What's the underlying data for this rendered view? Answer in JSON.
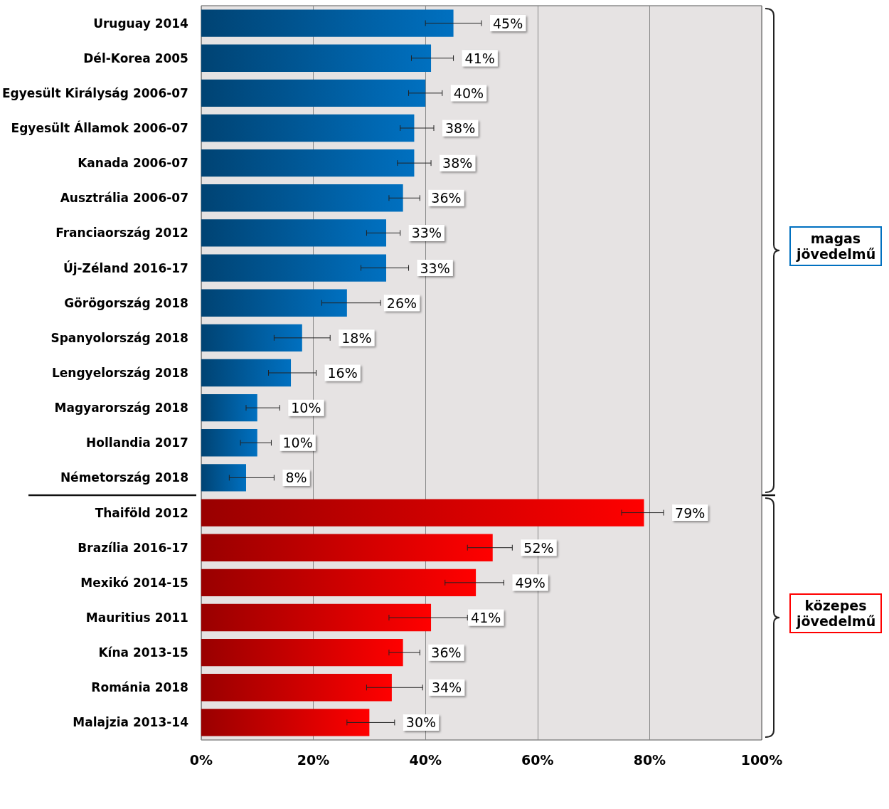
{
  "chart_data": {
    "type": "bar",
    "orientation": "horizontal",
    "categories": [
      "Uruguay 2014",
      "Dél-Korea 2005",
      "Egyesült Királyság 2006-07",
      "Egyesült Államok 2006-07",
      "Kanada 2006-07",
      "Ausztrália 2006-07",
      "Franciaország 2012",
      "Új-Zéland 2016-17",
      "Görögország 2018",
      "Spanyolország 2018",
      "Lengyelország 2018",
      "Magyarország 2018",
      "Hollandia 2017",
      "Németország 2018",
      "Thaiföld 2012",
      "Brazília 2016-17",
      "Mexikó 2014-15",
      "Mauritius 2011",
      "Kína 2013-15",
      "Románia 2018",
      "Malajzia 2013-14"
    ],
    "values": [
      45,
      41,
      40,
      38,
      38,
      36,
      33,
      33,
      26,
      18,
      16,
      10,
      10,
      8,
      79,
      52,
      49,
      41,
      36,
      34,
      30
    ],
    "value_labels": [
      "45%",
      "41%",
      "40%",
      "38%",
      "38%",
      "36%",
      "33%",
      "33%",
      "26%",
      "18%",
      "16%",
      "10%",
      "10%",
      "8%",
      "79%",
      "52%",
      "49%",
      "41%",
      "36%",
      "34%",
      "30%"
    ],
    "colors": [
      "#0070c0",
      "#0070c0",
      "#0070c0",
      "#0070c0",
      "#0070c0",
      "#0070c0",
      "#0070c0",
      "#0070c0",
      "#0070c0",
      "#0070c0",
      "#0070c0",
      "#0070c0",
      "#0070c0",
      "#0070c0",
      "#ff0000",
      "#ff0000",
      "#ff0000",
      "#ff0000",
      "#ff0000",
      "#ff0000",
      "#ff0000"
    ],
    "errors": [
      [
        40,
        50
      ],
      [
        37.5,
        45
      ],
      [
        37,
        43
      ],
      [
        35.5,
        41.5
      ],
      [
        35,
        41
      ],
      [
        33.5,
        39
      ],
      [
        29.5,
        35.5
      ],
      [
        28.5,
        37
      ],
      [
        21.5,
        32
      ],
      [
        13,
        23
      ],
      [
        12,
        20.5
      ],
      [
        8,
        14
      ],
      [
        7,
        12.5
      ],
      [
        5,
        13
      ],
      [
        75,
        82.5
      ],
      [
        47.5,
        55.5
      ],
      [
        43.5,
        54
      ],
      [
        33.5,
        47.5
      ],
      [
        33.5,
        39
      ],
      [
        29.5,
        39.5
      ],
      [
        26,
        34.5
      ]
    ],
    "xlim": [
      0,
      100
    ],
    "xticks": [
      {
        "value": 0,
        "label": "0%"
      },
      {
        "value": 20,
        "label": "20%"
      },
      {
        "value": 40,
        "label": "40%"
      },
      {
        "value": 60,
        "label": "60%"
      },
      {
        "value": 80,
        "label": "80%"
      },
      {
        "value": 100,
        "label": "100%"
      }
    ],
    "grid": "x",
    "annotations": [
      "magas jövedelmű",
      "közepes jövedelmű"
    ]
  }
}
